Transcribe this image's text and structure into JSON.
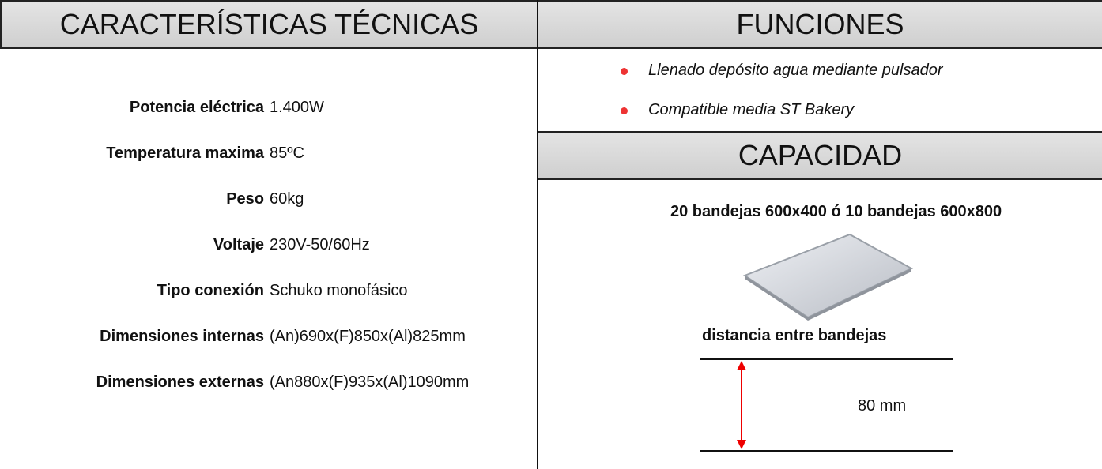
{
  "header": {
    "left_title": "CARACTERÍSTICAS TÉCNICAS",
    "right_title": "FUNCIONES"
  },
  "specs": [
    {
      "label": "Potencia eléctrica",
      "value": "1.400W"
    },
    {
      "label": "Temperatura maxima",
      "value": "85ºC"
    },
    {
      "label": "Peso",
      "value": "60kg"
    },
    {
      "label": "Voltaje",
      "value": "230V-50/60Hz"
    },
    {
      "label": "Tipo conexión",
      "value": "Schuko monofásico"
    },
    {
      "label": "Dimensiones internas",
      "value": "(An)690x(F)850x(Al)825mm"
    },
    {
      "label": "Dimensiones externas",
      "value": "(An880x(F)935x(Al)1090mm"
    }
  ],
  "funciones": [
    "Llenado depósito agua mediante pulsador",
    "Compatible media ST Bakery"
  ],
  "capacidad": {
    "title": "CAPACIDAD",
    "description": "20 bandejas 600x400 ó 10 bandejas 600x800",
    "distance_label": "distancia entre bandejas",
    "distance": "80 mm"
  }
}
